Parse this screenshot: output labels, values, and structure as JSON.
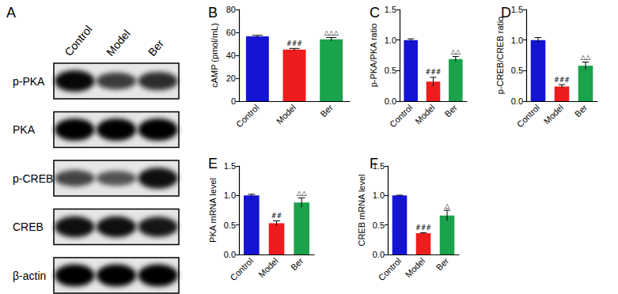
{
  "blot": {
    "title": "A",
    "lanes": [
      "Control",
      "Model",
      "Ber"
    ],
    "rows": [
      "p-PKA",
      "PKA",
      "p-CREB",
      "CREB",
      "β-actin"
    ]
  },
  "chart_data": [
    {
      "type": "bar",
      "title": "B",
      "ylabel": "cAMP (pmol/mL)",
      "categories": [
        "Control",
        "Model",
        "Ber"
      ],
      "values": [
        56.5,
        45,
        54
      ],
      "errors": [
        1,
        1,
        1.5
      ],
      "annotations": [
        null,
        "###",
        "△△△"
      ],
      "colors": [
        "#1414d2",
        "#ee1c1c",
        "#1aa34a"
      ],
      "ylim": [
        0,
        80
      ],
      "yticks": [
        0,
        20,
        40,
        60,
        80
      ],
      "grid": false
    },
    {
      "type": "bar",
      "title": "C",
      "ylabel": "p-PKA/PKA ratio",
      "categories": [
        "Control",
        "Model",
        "Ber"
      ],
      "values": [
        1.0,
        0.32,
        0.69
      ],
      "errors": [
        0.02,
        0.07,
        0.04
      ],
      "annotations": [
        null,
        "###",
        "△△"
      ],
      "colors": [
        "#1414d2",
        "#ee1c1c",
        "#1aa34a"
      ],
      "ylim": [
        0,
        1.5
      ],
      "yticks": [
        {
          "value": 0,
          "label": "0.0"
        },
        {
          "value": 0.5,
          "label": "0.5"
        },
        {
          "value": 1,
          "label": "1.0"
        },
        {
          "value": 1.5,
          "label": "1.5"
        }
      ],
      "grid": false
    },
    {
      "type": "bar",
      "title": "D",
      "ylabel": "p-CREB/CREB ratio",
      "categories": [
        "Control",
        "Model",
        "Ber"
      ],
      "values": [
        1.0,
        0.24,
        0.58
      ],
      "errors": [
        0.04,
        0.03,
        0.06
      ],
      "annotations": [
        null,
        "###",
        "△△"
      ],
      "colors": [
        "#1414d2",
        "#ee1c1c",
        "#1aa34a"
      ],
      "ylim": [
        0,
        1.5
      ],
      "yticks": [
        {
          "value": 0,
          "label": "0.0"
        },
        {
          "value": 0.5,
          "label": "0.5"
        },
        {
          "value": 1,
          "label": "1.0"
        },
        {
          "value": 1.5,
          "label": "1.5"
        }
      ],
      "grid": false
    },
    {
      "type": "bar",
      "title": "E",
      "ylabel": "PKA mRNA level",
      "categories": [
        "Control",
        "Model",
        "Ber"
      ],
      "values": [
        1.0,
        0.53,
        0.88
      ],
      "errors": [
        0.02,
        0.04,
        0.08
      ],
      "annotations": [
        null,
        "##",
        "△△"
      ],
      "colors": [
        "#1414d2",
        "#ee1c1c",
        "#1aa34a"
      ],
      "ylim": [
        0,
        1.5
      ],
      "yticks": [
        {
          "value": 0,
          "label": "0.0"
        },
        {
          "value": 0.5,
          "label": "0.5"
        },
        {
          "value": 1,
          "label": "1.0"
        },
        {
          "value": 1.5,
          "label": "1.5"
        }
      ],
      "grid": false
    },
    {
      "type": "bar",
      "title": "F",
      "ylabel": "CREB mRNA level",
      "categories": [
        "Control",
        "Model",
        "Ber"
      ],
      "values": [
        1.0,
        0.36,
        0.66
      ],
      "errors": [
        0.005,
        0.01,
        0.09
      ],
      "annotations": [
        null,
        "###",
        "△"
      ],
      "colors": [
        "#1414d2",
        "#ee1c1c",
        "#1aa34a"
      ],
      "ylim": [
        0,
        1.5
      ],
      "yticks": [
        {
          "value": 0,
          "label": "0.0"
        },
        {
          "value": 0.5,
          "label": "0.5"
        },
        {
          "value": 1,
          "label": "1.0"
        },
        {
          "value": 1.5,
          "label": "1.5"
        }
      ],
      "grid": false
    }
  ]
}
